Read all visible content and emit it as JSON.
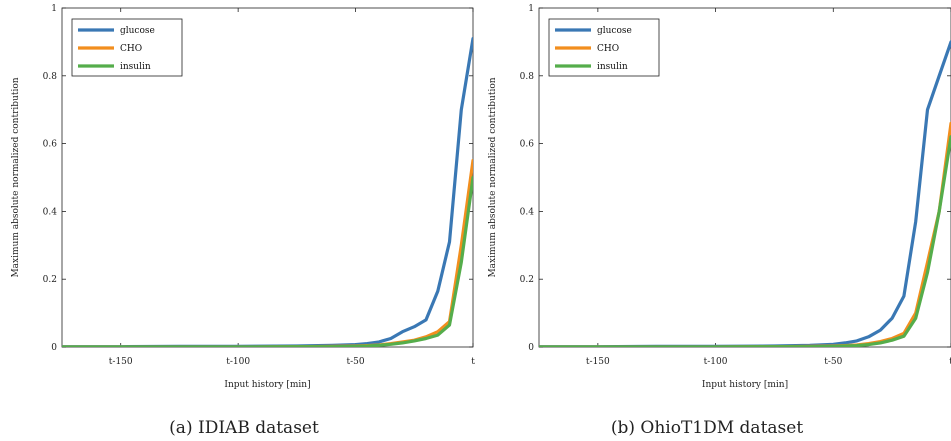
{
  "chart_data": [
    {
      "type": "line",
      "caption": "(a) IDIAB dataset",
      "xlabel": "Input history [min]",
      "ylabel": "Maximum absolute normalized contribution",
      "xlim": [
        -175,
        0
      ],
      "ylim": [
        0,
        1
      ],
      "xticks": [
        {
          "v": -150,
          "label": "t-150"
        },
        {
          "v": -100,
          "label": "t-100"
        },
        {
          "v": -50,
          "label": "t-50"
        },
        {
          "v": 0,
          "label": "t"
        }
      ],
      "yticks": [
        {
          "v": 0,
          "label": "0"
        },
        {
          "v": 0.2,
          "label": "0.2"
        },
        {
          "v": 0.4,
          "label": "0.4"
        },
        {
          "v": 0.6,
          "label": "0.6"
        },
        {
          "v": 0.8,
          "label": "0.8"
        },
        {
          "v": 1,
          "label": "1"
        }
      ],
      "legend_position": "top-left",
      "x": [
        -175,
        -150,
        -125,
        -100,
        -75,
        -60,
        -50,
        -45,
        -40,
        -35,
        -30,
        -25,
        -20,
        -15,
        -10,
        -5,
        0
      ],
      "series": [
        {
          "name": "glucose",
          "color": "#3a78b4",
          "values": [
            0.001,
            0.001,
            0.002,
            0.002,
            0.003,
            0.005,
            0.007,
            0.01,
            0.015,
            0.025,
            0.045,
            0.06,
            0.08,
            0.165,
            0.31,
            0.7,
            0.91
          ]
        },
        {
          "name": "CHO",
          "color": "#f28e1e",
          "values": [
            0.0,
            0.0,
            0.0,
            0.0,
            0.001,
            0.002,
            0.003,
            0.004,
            0.006,
            0.01,
            0.015,
            0.02,
            0.03,
            0.045,
            0.075,
            0.3,
            0.55
          ]
        },
        {
          "name": "insulin",
          "color": "#55ad4b",
          "values": [
            0.0,
            0.0,
            0.0,
            0.0,
            0.001,
            0.001,
            0.002,
            0.003,
            0.005,
            0.008,
            0.012,
            0.018,
            0.025,
            0.035,
            0.065,
            0.25,
            0.5
          ]
        }
      ]
    },
    {
      "type": "line",
      "caption": "(b) OhioT1DM dataset",
      "xlabel": "Input history [min]",
      "ylabel": "Maximum absolute normalized contribution",
      "xlim": [
        -175,
        0
      ],
      "ylim": [
        0,
        1
      ],
      "xticks": [
        {
          "v": -150,
          "label": "t-150"
        },
        {
          "v": -100,
          "label": "t-100"
        },
        {
          "v": -50,
          "label": "t-50"
        },
        {
          "v": 0,
          "label": "t"
        }
      ],
      "yticks": [
        {
          "v": 0,
          "label": "0"
        },
        {
          "v": 0.2,
          "label": "0.2"
        },
        {
          "v": 0.4,
          "label": "0.4"
        },
        {
          "v": 0.6,
          "label": "0.6"
        },
        {
          "v": 0.8,
          "label": "0.8"
        },
        {
          "v": 1,
          "label": "1"
        }
      ],
      "legend_position": "top-left",
      "x": [
        -175,
        -150,
        -125,
        -100,
        -75,
        -60,
        -50,
        -45,
        -40,
        -35,
        -30,
        -25,
        -20,
        -15,
        -10,
        -5,
        0
      ],
      "series": [
        {
          "name": "glucose",
          "color": "#3a78b4",
          "values": [
            0.001,
            0.001,
            0.002,
            0.002,
            0.003,
            0.005,
            0.008,
            0.012,
            0.018,
            0.03,
            0.05,
            0.085,
            0.15,
            0.37,
            0.7,
            0.8,
            0.9
          ]
        },
        {
          "name": "CHO",
          "color": "#f28e1e",
          "values": [
            0.0,
            0.0,
            0.0,
            0.0,
            0.001,
            0.002,
            0.003,
            0.004,
            0.006,
            0.01,
            0.016,
            0.025,
            0.04,
            0.1,
            0.25,
            0.4,
            0.66
          ]
        },
        {
          "name": "insulin",
          "color": "#55ad4b",
          "values": [
            0.0,
            0.0,
            0.0,
            0.0,
            0.001,
            0.001,
            0.002,
            0.003,
            0.004,
            0.007,
            0.012,
            0.02,
            0.032,
            0.085,
            0.22,
            0.4,
            0.62
          ]
        }
      ]
    }
  ]
}
